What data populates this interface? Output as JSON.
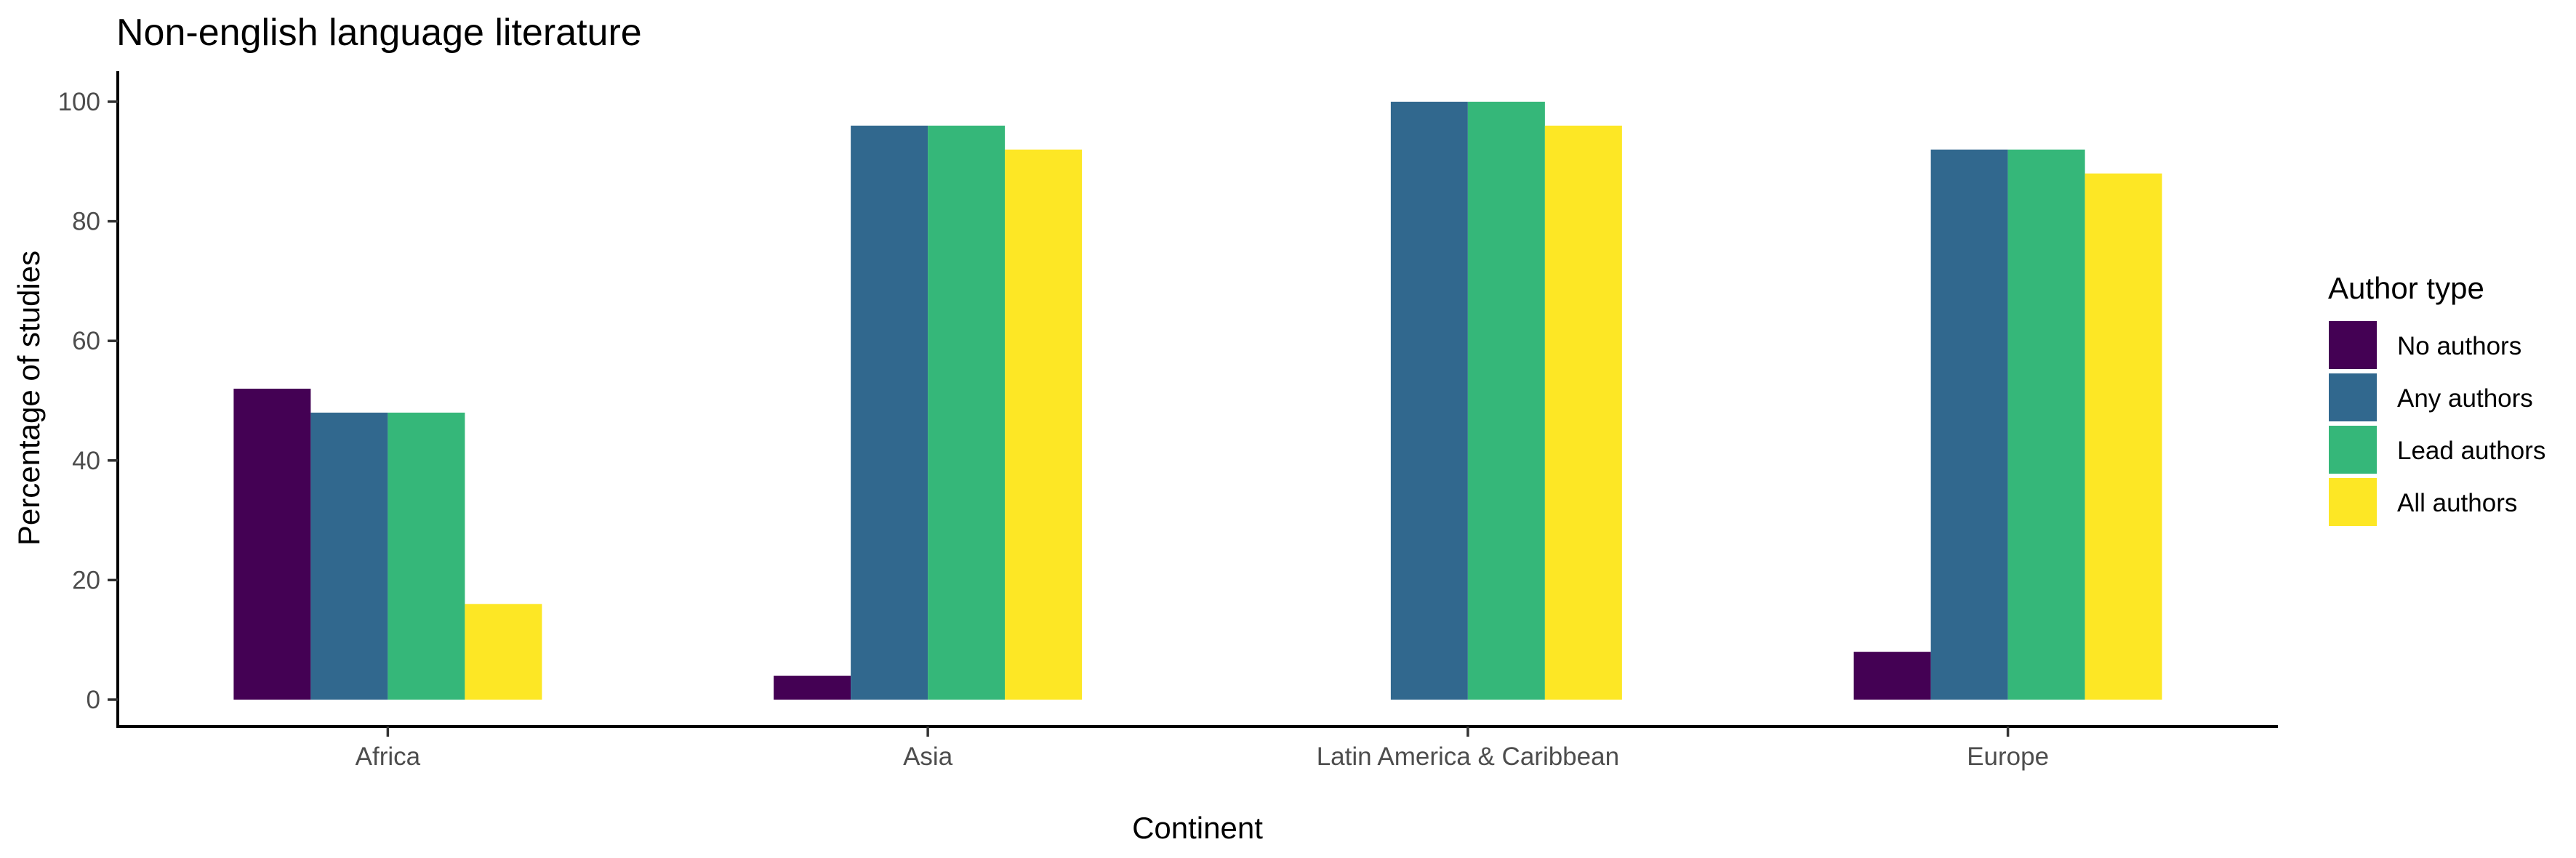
{
  "chart_data": {
    "type": "bar",
    "title": "Non-english language literature",
    "xlabel": "Continent",
    "ylabel": "Percentage of studies",
    "ylim": [
      0,
      105
    ],
    "yticks": [
      0,
      20,
      40,
      60,
      80,
      100
    ],
    "grid": false,
    "legend": {
      "title": "Author type",
      "position": "right"
    },
    "categories": [
      "Africa",
      "Asia",
      "Latin America & Caribbean",
      "Europe"
    ],
    "series": [
      {
        "name": "No authors",
        "color": "#440154",
        "values": [
          52,
          4,
          0,
          8
        ]
      },
      {
        "name": "Any authors",
        "color": "#31688E",
        "values": [
          48,
          96,
          100,
          92
        ]
      },
      {
        "name": "Lead authors",
        "color": "#35B779",
        "values": [
          48,
          96,
          100,
          92
        ]
      },
      {
        "name": "All authors",
        "color": "#FDE725",
        "values": [
          16,
          92,
          96,
          88
        ]
      }
    ]
  }
}
